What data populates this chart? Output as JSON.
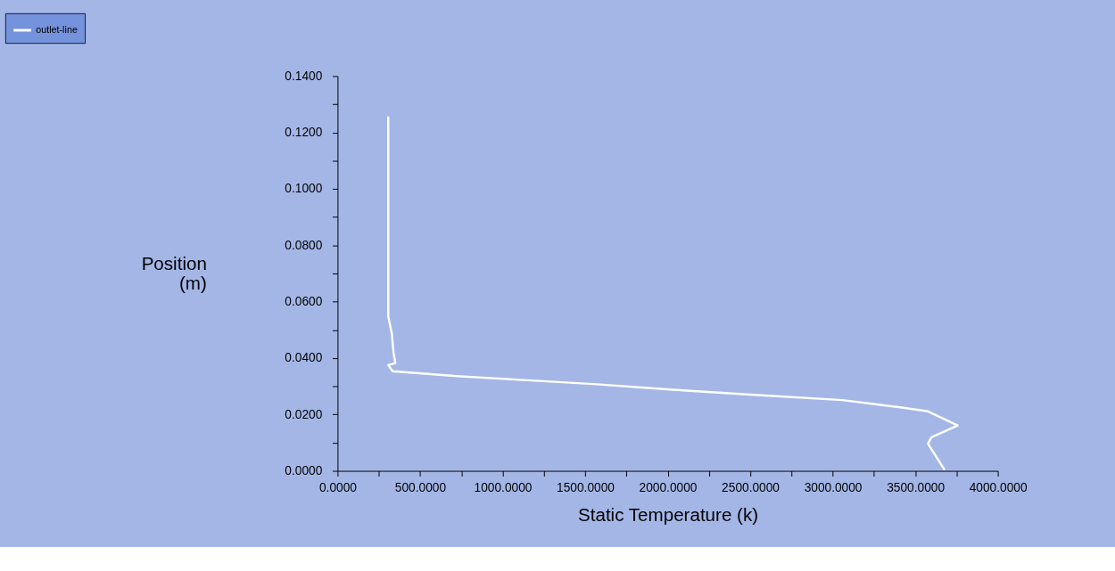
{
  "chart_data": {
    "type": "line",
    "xlabel": "Static Temperature (k)",
    "ylabel": "Position (m)",
    "series": [
      {
        "name": "outlet-line",
        "color": "#ffffff",
        "x": [
          307,
          307,
          329,
          339,
          350,
          307,
          334,
          668,
          1129,
          1569,
          2030,
          2544,
          3058,
          3397,
          3577,
          3757,
          3598,
          3577,
          3678
        ],
        "values": [
          0.1257,
          0.0548,
          0.0486,
          0.042,
          0.0382,
          0.0375,
          0.0353,
          0.0338,
          0.0322,
          0.0307,
          0.0288,
          0.0269,
          0.0251,
          0.0226,
          0.0211,
          0.0161,
          0.0119,
          0.0096,
          0.0003
        ]
      }
    ],
    "xlim": [
      0,
      4000
    ],
    "xticks": [
      {
        "value": 0,
        "label": "0.0000"
      },
      {
        "value": 250,
        "label": null
      },
      {
        "value": 500,
        "label": "500.0000"
      },
      {
        "value": 750,
        "label": null
      },
      {
        "value": 1000,
        "label": "1000.0000"
      },
      {
        "value": 1250,
        "label": null
      },
      {
        "value": 1500,
        "label": "1500.0000"
      },
      {
        "value": 1750,
        "label": null
      },
      {
        "value": 2000,
        "label": "2000.0000"
      },
      {
        "value": 2250,
        "label": null
      },
      {
        "value": 2500,
        "label": "2500.0000"
      },
      {
        "value": 2750,
        "label": null
      },
      {
        "value": 3000,
        "label": "3000.0000"
      },
      {
        "value": 3250,
        "label": null
      },
      {
        "value": 3500,
        "label": "3500.0000"
      },
      {
        "value": 3750,
        "label": null
      },
      {
        "value": 4000,
        "label": "4000.0000"
      }
    ],
    "ylim": [
      0,
      0.14
    ],
    "yticks": [
      {
        "value": 0,
        "label": "0.0000"
      },
      {
        "value": 0.01,
        "label": null
      },
      {
        "value": 0.02,
        "label": "0.0200"
      },
      {
        "value": 0.03,
        "label": null
      },
      {
        "value": 0.04,
        "label": "0.0400"
      },
      {
        "value": 0.05,
        "label": null
      },
      {
        "value": 0.06,
        "label": "0.0600"
      },
      {
        "value": 0.07,
        "label": null
      },
      {
        "value": 0.08,
        "label": "0.0800"
      },
      {
        "value": 0.09,
        "label": null
      },
      {
        "value": 0.1,
        "label": "0.1000"
      },
      {
        "value": 0.11,
        "label": null
      },
      {
        "value": 0.12,
        "label": "0.1200"
      },
      {
        "value": 0.13,
        "label": null
      },
      {
        "value": 0.14,
        "label": "0.1400"
      }
    ],
    "grid": false,
    "legend": "top left",
    "marker": "none",
    "line_style": "solid"
  }
}
